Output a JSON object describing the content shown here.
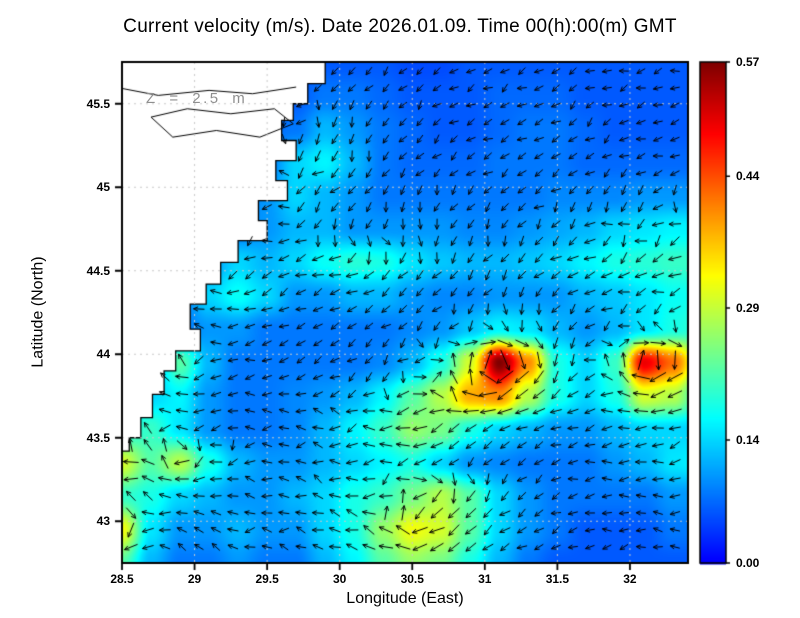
{
  "title": "Current velocity (m/s). Date 2026.01.09. Time 00(h):00(m) GMT",
  "annotation": "Z = 2.5 m",
  "colors": {
    "land": "#ffffff",
    "coastline": "#000000",
    "arrow": "#000000",
    "gridline": "#c9c9c9",
    "frame": "#000000",
    "annotation_text": "#8f8f8f"
  },
  "chart_data": {
    "type": "heatmap",
    "subtype": "current-velocity-field-with-vector-arrows",
    "title": "Current velocity (m/s). Date 2026.01.09. Time 00(h):00(m) GMT",
    "xlabel": "Longitude (East)",
    "ylabel": "Latitude (North)",
    "xlim": [
      28.5,
      32.4
    ],
    "ylim": [
      42.75,
      45.75
    ],
    "x_ticks": [
      28.5,
      29,
      29.5,
      30,
      30.5,
      31,
      31.5,
      32
    ],
    "x_tick_labels": [
      "28.5",
      "29",
      "29.5",
      "30",
      "30.5",
      "31",
      "31.5",
      "32"
    ],
    "y_ticks": [
      43,
      43.5,
      44,
      44.5,
      45,
      45.5
    ],
    "y_tick_labels": [
      "43",
      "43.5",
      "44",
      "44.5",
      "45",
      "45.5"
    ],
    "grid": true,
    "legend_position": "none",
    "colorbar": {
      "min": 0.0,
      "max": 0.57,
      "tick_values": [
        0.0,
        0.14,
        0.29,
        0.44,
        0.57
      ],
      "tick_labels": [
        "0.00",
        "0.14",
        "0.29",
        "0.44",
        "0.57"
      ],
      "colormap": "jet"
    },
    "speed_grid": {
      "comment": "current speed (m/s) on regular grid; rows north-to-south",
      "lon0": 28.5,
      "dlon": 0.2,
      "ncols": 21,
      "lat0": 45.75,
      "dlat": -0.2,
      "nrows": 16,
      "values": [
        [
          0.05,
          0.05,
          0.05,
          0.05,
          0.05,
          0.05,
          0.05,
          0.06,
          0.06,
          0.06,
          0.05,
          0.05,
          0.06,
          0.06,
          0.06,
          0.06,
          0.06,
          0.06,
          0.06,
          0.06,
          0.06
        ],
        [
          0.05,
          0.05,
          0.05,
          0.05,
          0.05,
          0.06,
          0.06,
          0.08,
          0.08,
          0.07,
          0.06,
          0.06,
          0.06,
          0.07,
          0.07,
          0.07,
          0.06,
          0.06,
          0.06,
          0.06,
          0.06
        ],
        [
          0.05,
          0.05,
          0.05,
          0.05,
          0.06,
          0.07,
          0.08,
          0.12,
          0.1,
          0.08,
          0.07,
          0.06,
          0.06,
          0.07,
          0.08,
          0.08,
          0.07,
          0.06,
          0.06,
          0.06,
          0.06
        ],
        [
          0.05,
          0.05,
          0.05,
          0.05,
          0.06,
          0.08,
          0.14,
          0.16,
          0.12,
          0.08,
          0.07,
          0.07,
          0.07,
          0.08,
          0.08,
          0.08,
          0.07,
          0.07,
          0.07,
          0.07,
          0.07
        ],
        [
          0.05,
          0.05,
          0.05,
          0.06,
          0.07,
          0.1,
          0.14,
          0.12,
          0.1,
          0.08,
          0.08,
          0.08,
          0.08,
          0.08,
          0.08,
          0.09,
          0.09,
          0.09,
          0.1,
          0.1,
          0.1
        ],
        [
          0.05,
          0.05,
          0.06,
          0.07,
          0.08,
          0.1,
          0.12,
          0.12,
          0.1,
          0.1,
          0.1,
          0.1,
          0.09,
          0.09,
          0.1,
          0.11,
          0.12,
          0.14,
          0.15,
          0.16,
          0.16
        ],
        [
          0.06,
          0.06,
          0.07,
          0.1,
          0.14,
          0.12,
          0.14,
          0.17,
          0.19,
          0.18,
          0.15,
          0.13,
          0.12,
          0.12,
          0.13,
          0.14,
          0.16,
          0.18,
          0.19,
          0.2,
          0.2
        ],
        [
          0.06,
          0.07,
          0.08,
          0.14,
          0.17,
          0.14,
          0.1,
          0.1,
          0.12,
          0.12,
          0.1,
          0.09,
          0.09,
          0.1,
          0.1,
          0.1,
          0.12,
          0.13,
          0.15,
          0.17,
          0.18
        ],
        [
          0.07,
          0.08,
          0.08,
          0.1,
          0.1,
          0.08,
          0.08,
          0.08,
          0.08,
          0.08,
          0.09,
          0.1,
          0.13,
          0.16,
          0.15,
          0.12,
          0.1,
          0.12,
          0.15,
          0.18,
          0.2
        ],
        [
          0.08,
          0.1,
          0.22,
          0.12,
          0.08,
          0.08,
          0.08,
          0.08,
          0.08,
          0.09,
          0.12,
          0.18,
          0.3,
          0.57,
          0.4,
          0.18,
          0.14,
          0.2,
          0.5,
          0.42,
          0.25
        ],
        [
          0.08,
          0.14,
          0.16,
          0.1,
          0.08,
          0.08,
          0.09,
          0.1,
          0.12,
          0.16,
          0.22,
          0.28,
          0.38,
          0.4,
          0.28,
          0.18,
          0.14,
          0.18,
          0.3,
          0.28,
          0.18
        ],
        [
          0.18,
          0.2,
          0.15,
          0.1,
          0.08,
          0.08,
          0.09,
          0.12,
          0.16,
          0.2,
          0.26,
          0.24,
          0.18,
          0.14,
          0.12,
          0.1,
          0.1,
          0.12,
          0.14,
          0.14,
          0.14
        ],
        [
          0.3,
          0.22,
          0.28,
          0.18,
          0.12,
          0.1,
          0.1,
          0.12,
          0.14,
          0.16,
          0.18,
          0.14,
          0.1,
          0.09,
          0.08,
          0.08,
          0.08,
          0.1,
          0.12,
          0.15,
          0.16
        ],
        [
          0.2,
          0.18,
          0.14,
          0.12,
          0.1,
          0.1,
          0.12,
          0.14,
          0.18,
          0.2,
          0.24,
          0.28,
          0.22,
          0.14,
          0.1,
          0.08,
          0.08,
          0.08,
          0.08,
          0.1,
          0.1
        ],
        [
          0.32,
          0.15,
          0.1,
          0.1,
          0.12,
          0.1,
          0.1,
          0.14,
          0.18,
          0.26,
          0.32,
          0.3,
          0.22,
          0.14,
          0.1,
          0.08,
          0.06,
          0.06,
          0.06,
          0.08,
          0.08
        ],
        [
          0.22,
          0.12,
          0.08,
          0.08,
          0.1,
          0.08,
          0.08,
          0.12,
          0.16,
          0.22,
          0.26,
          0.24,
          0.18,
          0.12,
          0.08,
          0.06,
          0.06,
          0.06,
          0.06,
          0.06,
          0.06
        ]
      ]
    },
    "direction_grid": {
      "comment": "dominant current direction, degrees math convention (0=E, 90=N)",
      "lons": [
        28.6,
        29.0,
        29.4,
        29.8,
        30.2,
        30.6,
        31.0,
        31.4,
        31.8,
        32.2
      ],
      "lats": [
        45.6,
        45.2,
        44.8,
        44.4,
        44.0,
        43.6,
        43.2,
        42.8
      ],
      "angles_deg": [
        [
          200,
          210,
          220,
          230,
          225,
          220,
          215,
          210,
          205,
          200
        ],
        [
          210,
          215,
          220,
          235,
          240,
          230,
          220,
          215,
          210,
          205
        ],
        [
          190,
          200,
          210,
          220,
          235,
          245,
          235,
          225,
          215,
          205
        ],
        [
          170,
          185,
          200,
          215,
          225,
          235,
          245,
          235,
          225,
          215
        ],
        [
          160,
          175,
          190,
          205,
          215,
          220,
          225,
          220,
          212,
          206
        ],
        [
          150,
          165,
          180,
          195,
          205,
          212,
          218,
          212,
          206,
          200
        ],
        [
          140,
          155,
          170,
          185,
          195,
          205,
          208,
          202,
          196,
          190
        ],
        [
          130,
          145,
          162,
          175,
          188,
          198,
          202,
          196,
          190,
          185
        ]
      ]
    },
    "hotspots": [
      {
        "lon": 31.1,
        "lat": 43.9,
        "speed": 0.57
      },
      {
        "lon": 32.15,
        "lat": 43.9,
        "speed": 0.5
      }
    ],
    "land_polygon": [
      [
        28.45,
        45.78
      ],
      [
        29.9,
        45.78
      ],
      [
        29.9,
        45.62
      ],
      [
        29.78,
        45.62
      ],
      [
        29.78,
        45.5
      ],
      [
        29.68,
        45.5
      ],
      [
        29.68,
        45.4
      ],
      [
        29.6,
        45.4
      ],
      [
        29.6,
        45.28
      ],
      [
        29.7,
        45.28
      ],
      [
        29.7,
        45.16
      ],
      [
        29.56,
        45.16
      ],
      [
        29.56,
        45.04
      ],
      [
        29.64,
        45.04
      ],
      [
        29.64,
        44.92
      ],
      [
        29.44,
        44.92
      ],
      [
        29.44,
        44.8
      ],
      [
        29.5,
        44.8
      ],
      [
        29.5,
        44.68
      ],
      [
        29.3,
        44.68
      ],
      [
        29.3,
        44.55
      ],
      [
        29.18,
        44.55
      ],
      [
        29.18,
        44.42
      ],
      [
        29.08,
        44.42
      ],
      [
        29.08,
        44.3
      ],
      [
        28.97,
        44.3
      ],
      [
        28.97,
        44.15
      ],
      [
        29.04,
        44.15
      ],
      [
        29.04,
        44.02
      ],
      [
        28.87,
        44.02
      ],
      [
        28.87,
        43.9
      ],
      [
        28.79,
        43.9
      ],
      [
        28.79,
        43.76
      ],
      [
        28.71,
        43.76
      ],
      [
        28.71,
        43.62
      ],
      [
        28.63,
        43.62
      ],
      [
        28.63,
        43.5
      ],
      [
        28.55,
        43.5
      ],
      [
        28.55,
        43.42
      ],
      [
        28.45,
        43.42
      ]
    ],
    "coast_detail_loop": [
      [
        28.7,
        45.42
      ],
      [
        28.95,
        45.47
      ],
      [
        29.25,
        45.44
      ],
      [
        29.55,
        45.47
      ],
      [
        29.68,
        45.38
      ],
      [
        29.45,
        45.3
      ],
      [
        29.15,
        45.34
      ],
      [
        28.85,
        45.3
      ],
      [
        28.7,
        45.42
      ]
    ],
    "coast_detail_line": [
      [
        28.45,
        45.6
      ],
      [
        28.75,
        45.55
      ],
      [
        29.1,
        45.58
      ],
      [
        29.4,
        45.56
      ],
      [
        29.7,
        45.6
      ]
    ]
  }
}
